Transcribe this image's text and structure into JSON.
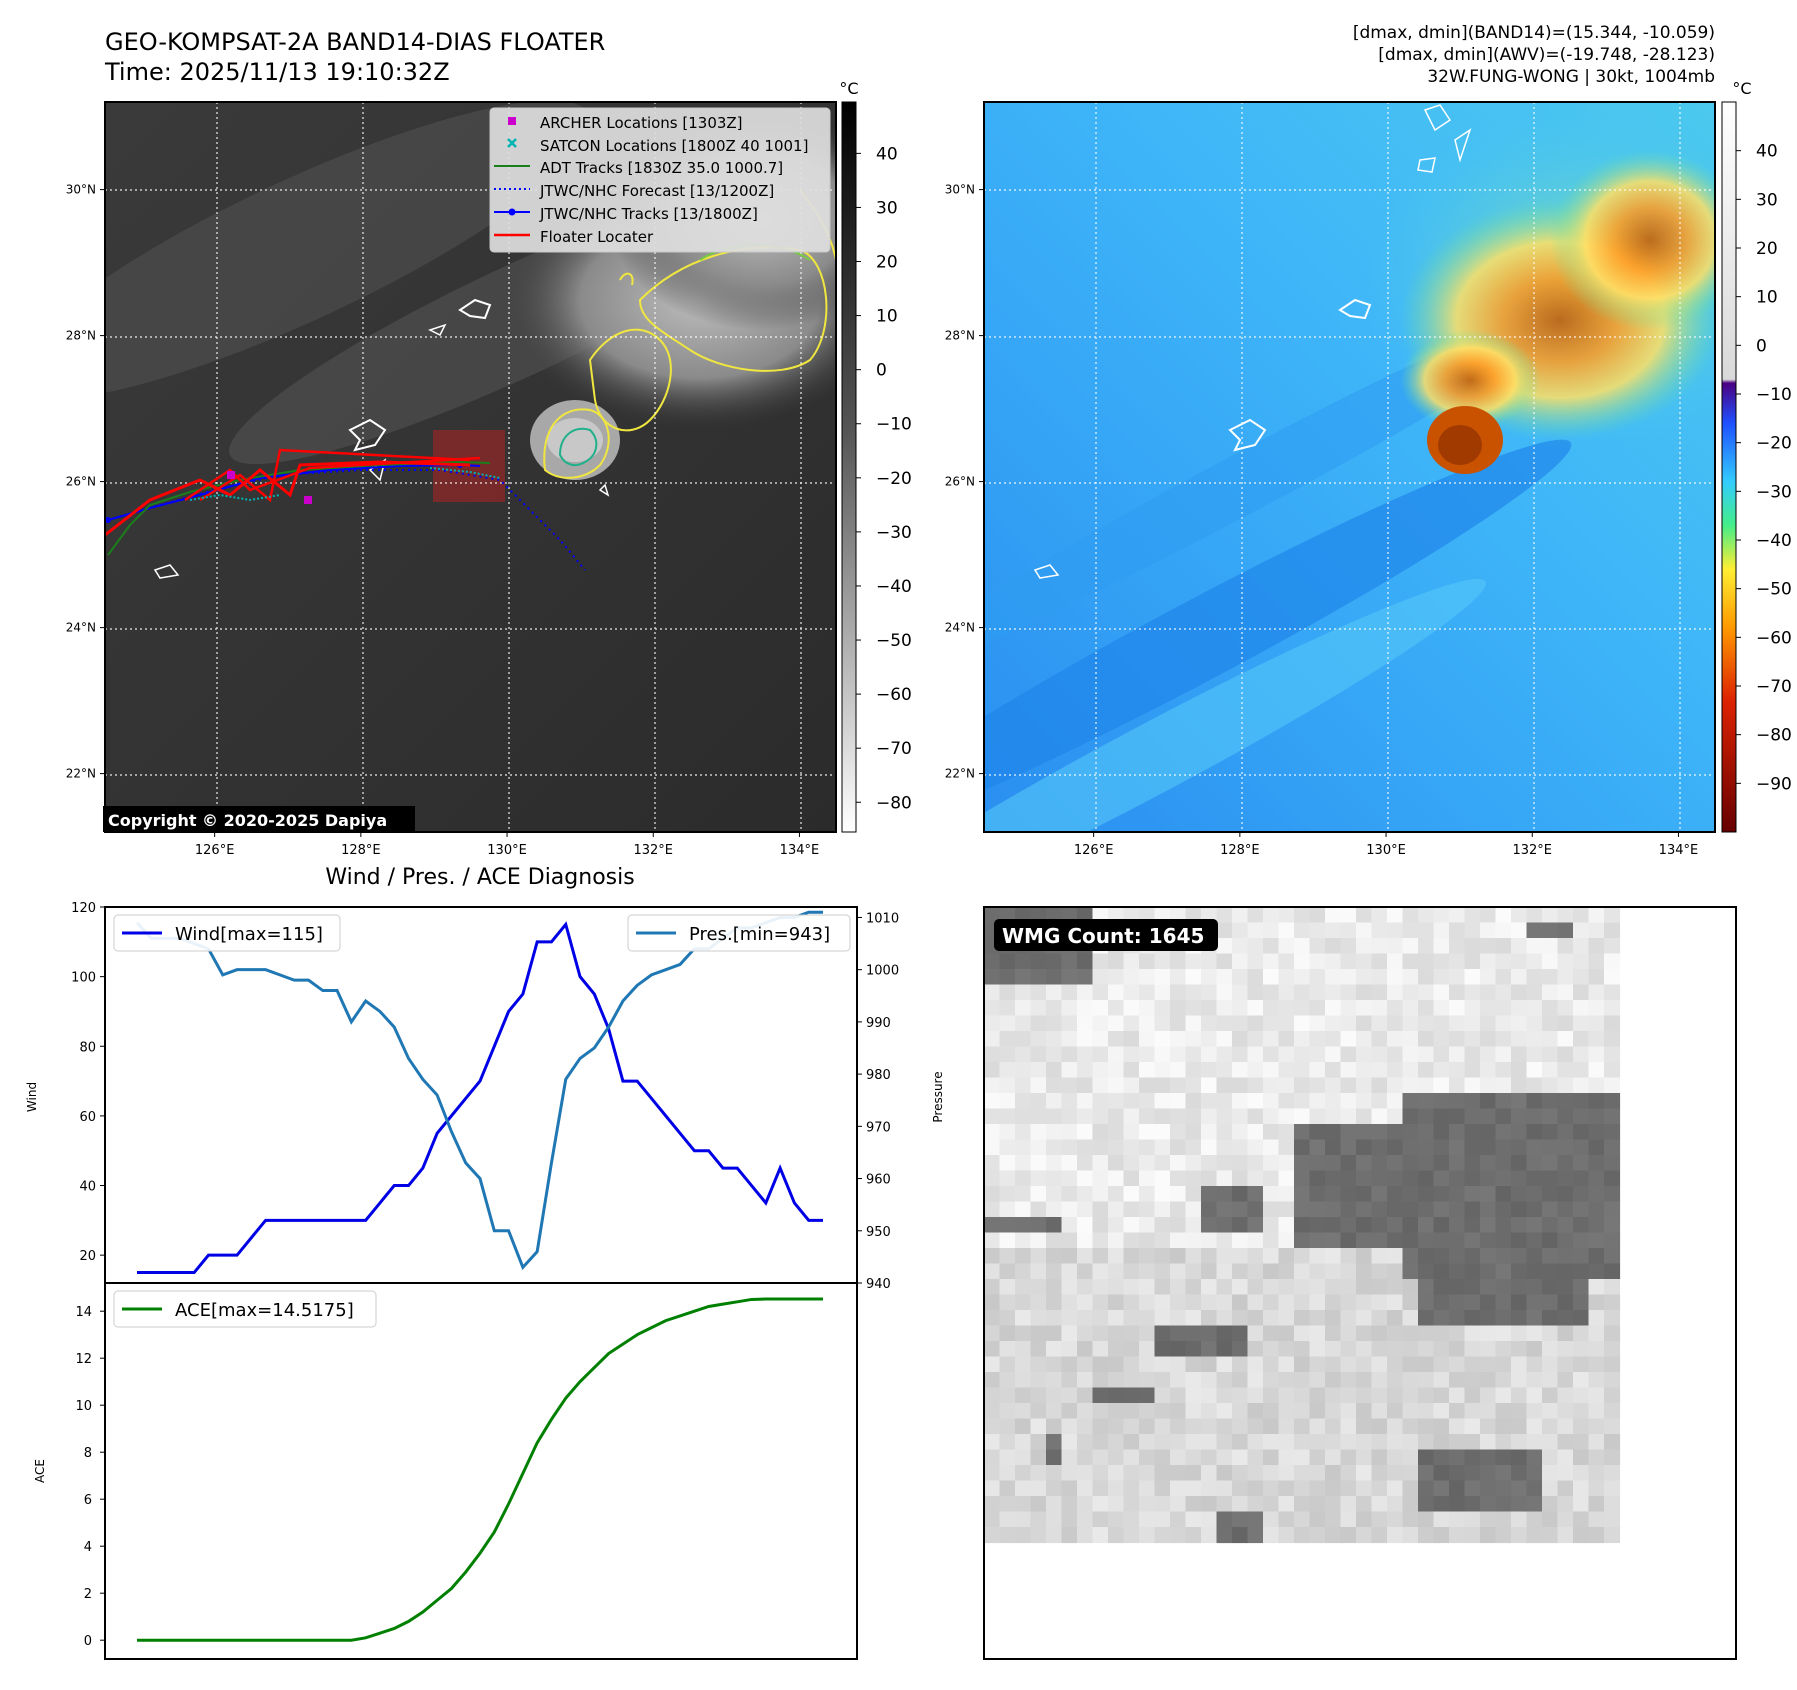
{
  "header": {
    "title": "GEO-KOMPSAT-2A BAND14-DIAS FLOATER",
    "time": "Time: 2025/11/13 19:10:32Z",
    "info_line1": "[dmax, dmin](BAND14)=(15.344, -10.059)",
    "info_line2": "[dmax, dmin](AWV)=(-19.748, -28.123)",
    "info_line3": "32W.FUNG-WONG | 30kt, 1004mb"
  },
  "copyright": "Copyright © 2020-2025 Dapiya",
  "map_axes": {
    "lon_labels": [
      "126°E",
      "128°E",
      "130°E",
      "132°E",
      "134°E"
    ],
    "lat_labels": [
      "30°N",
      "28°N",
      "26°N",
      "24°N",
      "22°N"
    ],
    "lon_values": [
      126,
      128,
      130,
      132,
      134
    ],
    "lat_values": [
      30,
      28,
      26,
      24,
      22
    ],
    "lon_range": [
      124.5,
      134.5
    ],
    "lat_range": [
      21.2,
      31.2
    ]
  },
  "legend": {
    "items": [
      {
        "label": "ARCHER Locations [1303Z]",
        "color": "#cc00cc",
        "marker": "square"
      },
      {
        "label": "SATCON Locations [1800Z 40 1001]",
        "color": "#00b3b3",
        "marker": "x"
      },
      {
        "label": "ADT Tracks [1830Z 35.0 1000.7]",
        "color": "#1a7f1a",
        "marker": "line"
      },
      {
        "label": "JTWC/NHC Forecast [13/1200Z]",
        "color": "#0000ff",
        "marker": "dotted"
      },
      {
        "label": "JTWC/NHC Tracks [13/1800Z]",
        "color": "#0000ff",
        "marker": "line-dot"
      },
      {
        "label": "Floater Locater",
        "color": "#ff0000",
        "marker": "line"
      }
    ]
  },
  "colorbars": {
    "unit": "°C",
    "gray_ticks": [
      "40",
      "30",
      "20",
      "10",
      "0",
      "−10",
      "−20",
      "−30",
      "−40",
      "−50",
      "−60",
      "−70",
      "−80"
    ],
    "gray_values": [
      40,
      30,
      20,
      10,
      0,
      -10,
      -20,
      -30,
      -40,
      -50,
      -60,
      -70,
      -80
    ],
    "color_ticks": [
      "40",
      "30",
      "20",
      "10",
      "0",
      "−10",
      "−20",
      "−30",
      "−40",
      "−50",
      "−60",
      "−70",
      "−80",
      "−90"
    ],
    "color_values": [
      40,
      30,
      20,
      10,
      0,
      -10,
      -20,
      -30,
      -40,
      -50,
      -60,
      -70,
      -80,
      -90
    ]
  },
  "wmg": {
    "label": "WMG Count: 1645",
    "dark_color": "#6e6e6e"
  },
  "chart_data": [
    {
      "type": "line",
      "title": "Wind / Pres. / ACE Diagnosis",
      "ylabel": "Wind",
      "y2label": "Pressure",
      "ylim": [
        12,
        120
      ],
      "y2lim": [
        940,
        1012
      ],
      "yticks": [
        20,
        40,
        60,
        80,
        100,
        120
      ],
      "y2ticks": [
        940,
        950,
        960,
        970,
        980,
        990,
        1000,
        1010
      ],
      "series": [
        {
          "name": "Wind[max=115]",
          "color": "#0000e6",
          "values": [
            15,
            15,
            15,
            15,
            15,
            20,
            20,
            20,
            25,
            30,
            30,
            30,
            30,
            30,
            30,
            30,
            30,
            35,
            40,
            40,
            45,
            55,
            60,
            65,
            70,
            80,
            90,
            95,
            110,
            110,
            115,
            100,
            95,
            85,
            70,
            70,
            65,
            60,
            55,
            50,
            50,
            45,
            45,
            40,
            35,
            45,
            35,
            30,
            30
          ]
        },
        {
          "name": "Pres.[min=943]",
          "color": "#1f77b4",
          "values": [
            1009,
            1006,
            1006,
            1006,
            1005,
            1004,
            999,
            1000,
            1000,
            1000,
            999,
            998,
            998,
            996,
            996,
            990,
            994,
            992,
            989,
            983,
            979,
            976,
            969,
            963,
            960,
            950,
            950,
            943,
            946,
            963,
            979,
            983,
            985,
            989,
            994,
            997,
            999,
            1000,
            1001,
            1004,
            1004,
            1006,
            1008,
            1008,
            1009,
            1010,
            1010,
            1011,
            1011
          ]
        }
      ]
    },
    {
      "type": "line",
      "ylabel": "ACE",
      "ylim": [
        -0.8,
        15.2
      ],
      "yticks": [
        0,
        2,
        4,
        6,
        8,
        10,
        12,
        14
      ],
      "series": [
        {
          "name": "ACE[max=14.5175]",
          "color": "#008000",
          "values": [
            0,
            0,
            0,
            0,
            0,
            0,
            0,
            0,
            0,
            0,
            0,
            0,
            0,
            0,
            0,
            0,
            0.1,
            0.3,
            0.5,
            0.8,
            1.2,
            1.7,
            2.2,
            2.9,
            3.7,
            4.6,
            5.8,
            7.1,
            8.4,
            9.4,
            10.3,
            11.0,
            11.6,
            12.2,
            12.6,
            13.0,
            13.3,
            13.6,
            13.8,
            14.0,
            14.2,
            14.3,
            14.4,
            14.5,
            14.5175,
            14.5175,
            14.5175,
            14.5175,
            14.5175
          ]
        }
      ]
    }
  ]
}
